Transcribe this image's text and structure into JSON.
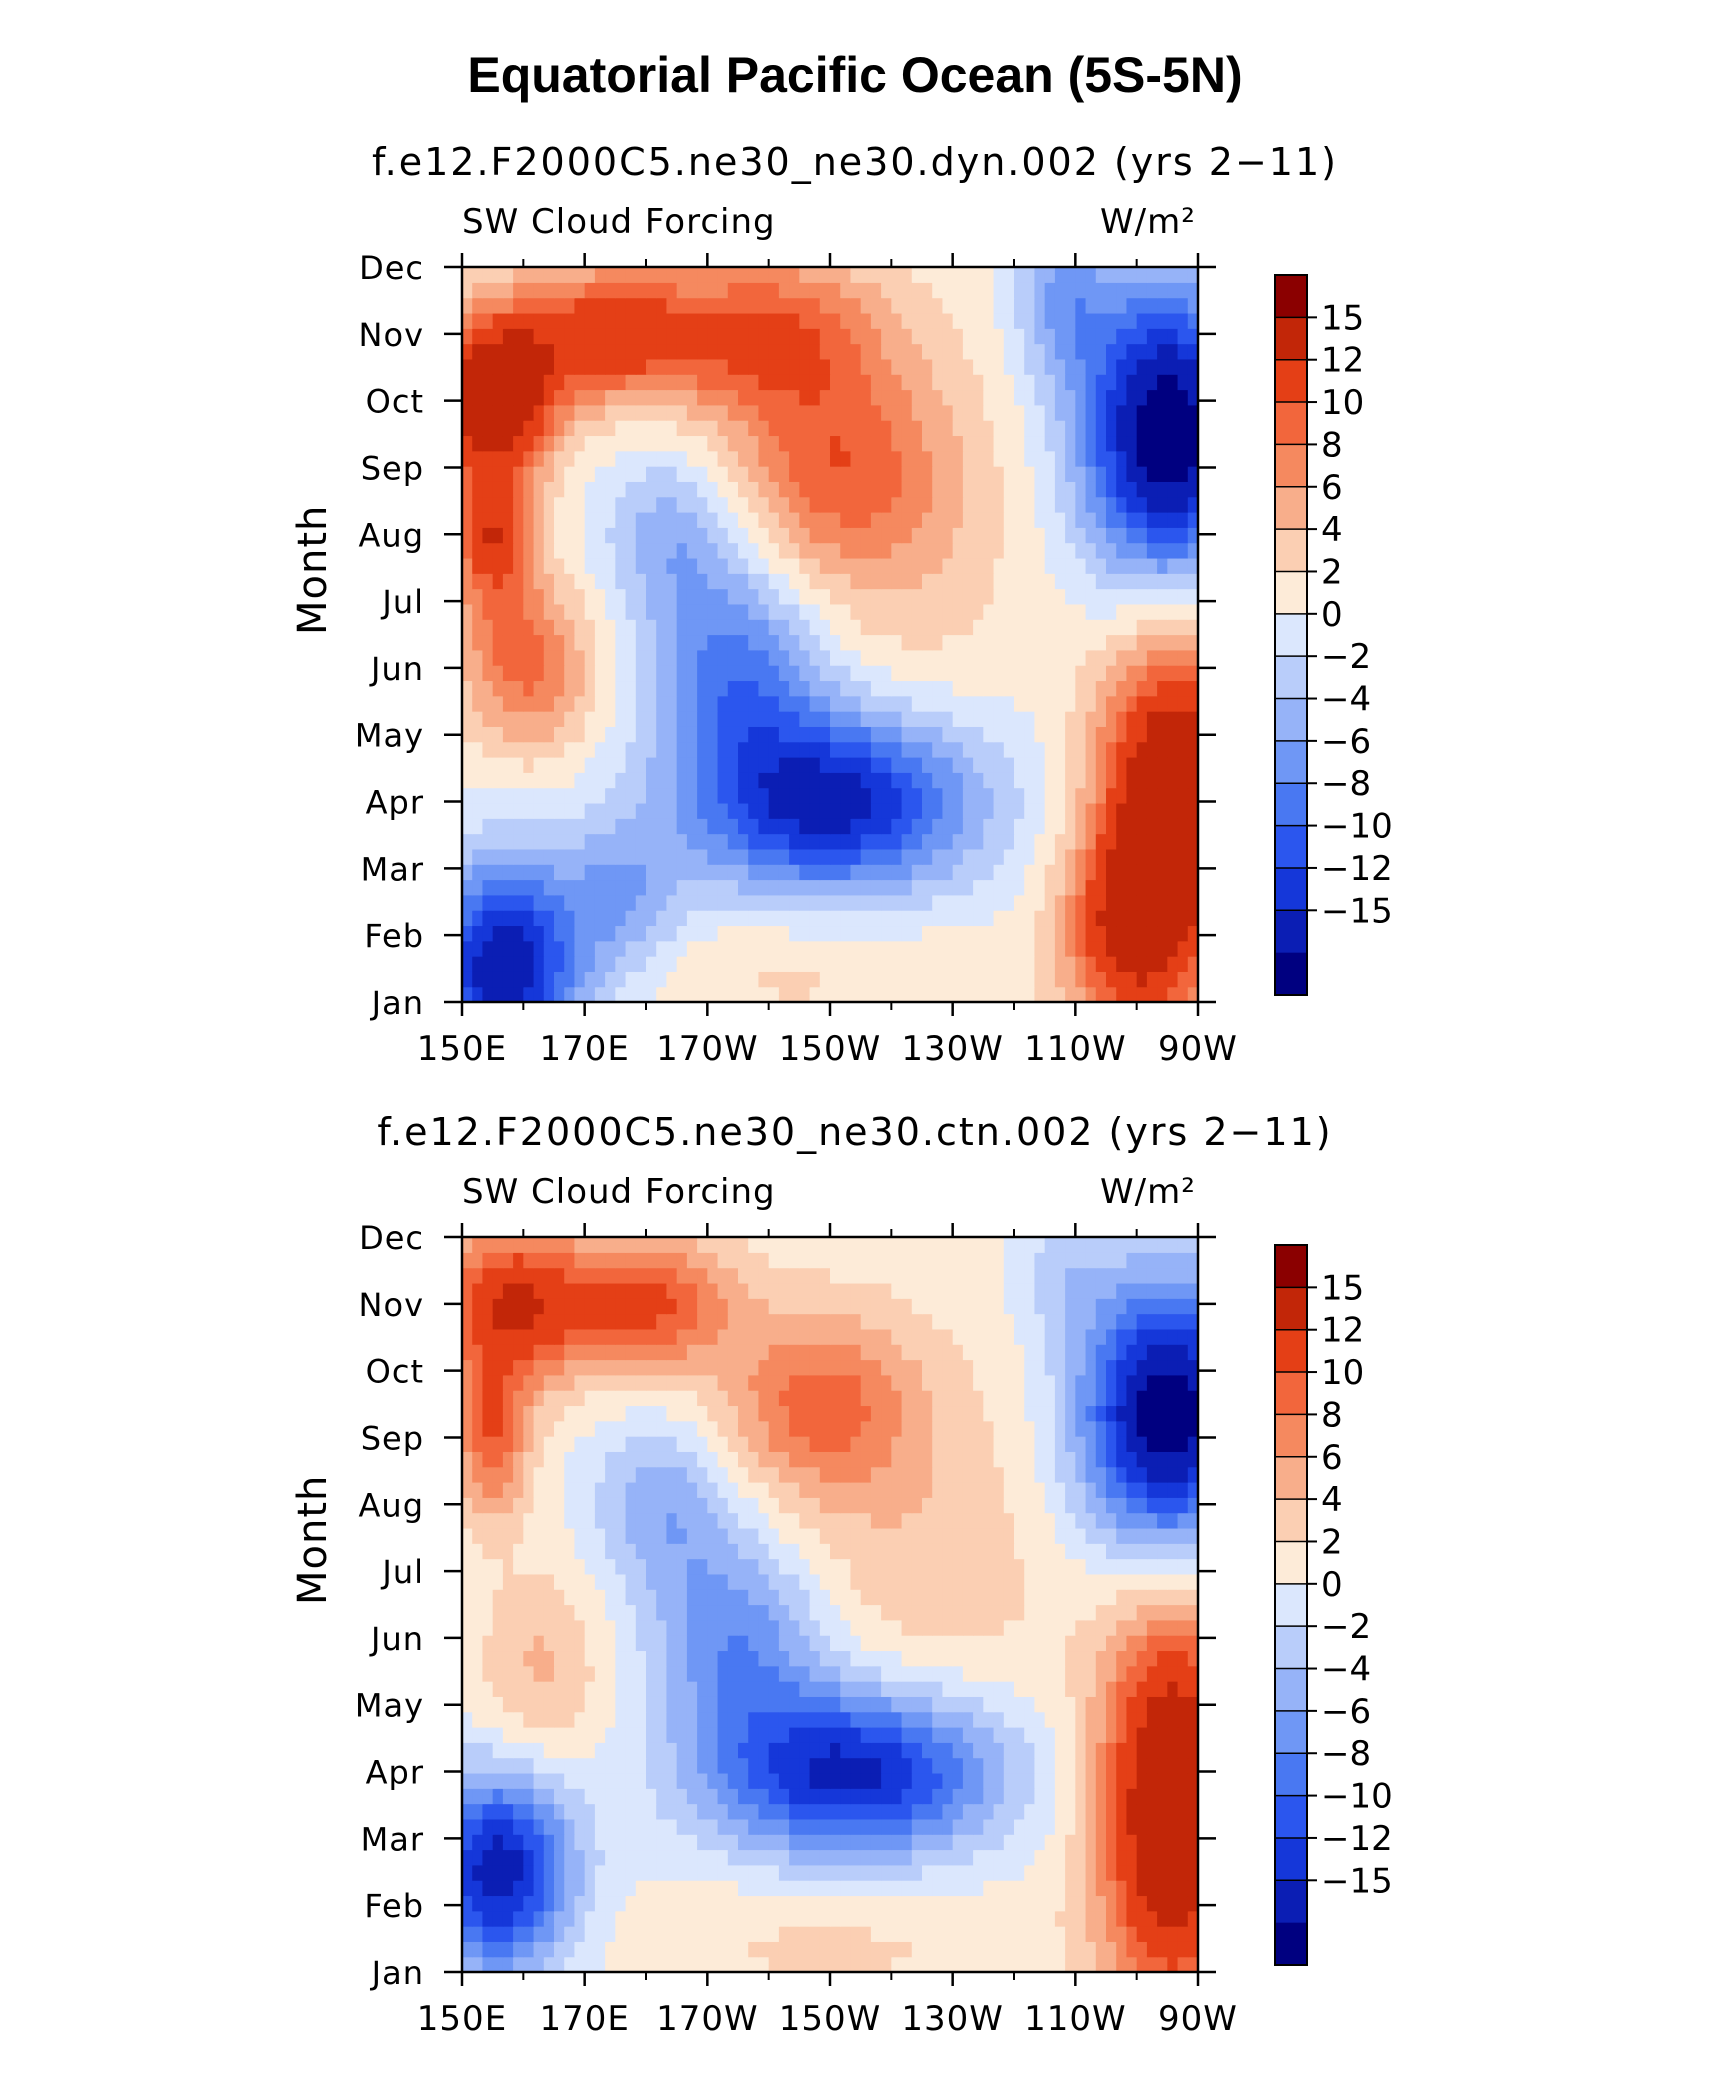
{
  "figure": {
    "title": "Equatorial Pacific Ocean (5S-5N)",
    "colors": [
      "#000080",
      "#0b1eb4",
      "#1537d9",
      "#2b56ee",
      "#4978f2",
      "#6f97f5",
      "#96b3f8",
      "#b9cdfa",
      "#dbe7fd",
      "#fdebd8",
      "#fbcfb3",
      "#f8ae8b",
      "#f5895f",
      "#f2663c",
      "#e43f16",
      "#c22608",
      "#8b0000"
    ]
  },
  "chart_data": [
    {
      "type": "heatmap",
      "title": "f.e12.F2000C5.ne30_ne30.dyn.002 (yrs 2−11)",
      "variable": "SW Cloud Forcing",
      "units": "W/m²",
      "ylabel": "Month",
      "xlabel": "",
      "x_ticks": [
        "150E",
        "170E",
        "170W",
        "150W",
        "130W",
        "110W",
        "90W"
      ],
      "x_range_lon": [
        150,
        270
      ],
      "y_ticks": [
        "Jan",
        "Feb",
        "Mar",
        "Apr",
        "May",
        "Jun",
        "Jul",
        "Aug",
        "Sep",
        "Oct",
        "Nov",
        "Dec"
      ],
      "colorbar_labels": [
        "15",
        "12",
        "10",
        "8",
        "6",
        "4",
        "2",
        "0",
        "−2",
        "−4",
        "−6",
        "−8",
        "−10",
        "−12",
        "−15"
      ],
      "levels": [
        -15,
        -12,
        -10,
        -8,
        -6,
        -4,
        -2,
        0,
        2,
        4,
        6,
        8,
        10,
        12,
        15
      ],
      "value_range": [
        -18,
        18
      ],
      "features": [
        {
          "lon": 155,
          "month": 10,
          "value": 17,
          "spread_lon": 10,
          "spread_month": 1.2
        },
        {
          "lon": 155,
          "month": 8,
          "value": 9,
          "spread_lon": 6,
          "spread_month": 0.8
        },
        {
          "lon": 173,
          "month": 11,
          "value": 11,
          "spread_lon": 16,
          "spread_month": 1.0
        },
        {
          "lon": 200,
          "month": 11,
          "value": 9,
          "spread_lon": 18,
          "spread_month": 1.2
        },
        {
          "lon": 210,
          "month": 9,
          "value": 7,
          "spread_lon": 18,
          "spread_month": 1.5
        },
        {
          "lon": 220,
          "month": 8,
          "value": 3,
          "spread_lon": 20,
          "spread_month": 3.0
        },
        {
          "lon": 162,
          "month": 6,
          "value": 7,
          "spread_lon": 10,
          "spread_month": 1.3
        },
        {
          "lon": 155,
          "month": 7,
          "value": 4,
          "spread_lon": 8,
          "spread_month": 1.5
        },
        {
          "lon": 210,
          "month": 4,
          "value": -16,
          "spread_lon": 24,
          "spread_month": 1.4
        },
        {
          "lon": 195,
          "month": 6,
          "value": -9,
          "spread_lon": 14,
          "spread_month": 1.5
        },
        {
          "lon": 185,
          "month": 8,
          "value": -6,
          "spread_lon": 12,
          "spread_month": 1.3
        },
        {
          "lon": 157,
          "month": 1.5,
          "value": -17,
          "spread_lon": 12,
          "spread_month": 1.6
        },
        {
          "lon": 176,
          "month": 2.5,
          "value": -6,
          "spread_lon": 10,
          "spread_month": 1.2
        },
        {
          "lon": 265,
          "month": 9.5,
          "value": -20,
          "spread_lon": 14,
          "spread_month": 2.2
        },
        {
          "lon": 248,
          "month": 11.5,
          "value": -6,
          "spread_lon": 8,
          "spread_month": 1.2
        },
        {
          "lon": 266,
          "month": 4,
          "value": 18,
          "spread_lon": 12,
          "spread_month": 2.5
        },
        {
          "lon": 258,
          "month": 2,
          "value": 10,
          "spread_lon": 10,
          "spread_month": 1.5
        },
        {
          "lon": 205,
          "month": 1.5,
          "value": 2,
          "spread_lon": 30,
          "spread_month": 1.0
        }
      ]
    },
    {
      "type": "heatmap",
      "title": "f.e12.F2000C5.ne30_ne30.ctn.002 (yrs 2−11)",
      "variable": "SW Cloud Forcing",
      "units": "W/m²",
      "ylabel": "Month",
      "xlabel": "",
      "x_ticks": [
        "150E",
        "170E",
        "170W",
        "150W",
        "130W",
        "110W",
        "90W"
      ],
      "x_range_lon": [
        150,
        270
      ],
      "y_ticks": [
        "Jan",
        "Feb",
        "Mar",
        "Apr",
        "May",
        "Jun",
        "Jul",
        "Aug",
        "Sep",
        "Oct",
        "Nov",
        "Dec"
      ],
      "colorbar_labels": [
        "15",
        "12",
        "10",
        "8",
        "6",
        "4",
        "2",
        "0",
        "−2",
        "−4",
        "−6",
        "−8",
        "−10",
        "−12",
        "−15"
      ],
      "levels": [
        -15,
        -12,
        -10,
        -8,
        -6,
        -4,
        -2,
        0,
        2,
        4,
        6,
        8,
        10,
        12,
        15
      ],
      "value_range": [
        -18,
        18
      ],
      "features": [
        {
          "lon": 158,
          "month": 11,
          "value": 12,
          "spread_lon": 12,
          "spread_month": 1.2
        },
        {
          "lon": 155,
          "month": 9,
          "value": 9,
          "spread_lon": 6,
          "spread_month": 1.2
        },
        {
          "lon": 180,
          "month": 11,
          "value": 10,
          "spread_lon": 14,
          "spread_month": 1.0
        },
        {
          "lon": 208,
          "month": 9.5,
          "value": 8,
          "spread_lon": 16,
          "spread_month": 1.4
        },
        {
          "lon": 225,
          "month": 7,
          "value": 3,
          "spread_lon": 22,
          "spread_month": 3.0
        },
        {
          "lon": 163,
          "month": 5.5,
          "value": 4,
          "spread_lon": 10,
          "spread_month": 1.5
        },
        {
          "lon": 214,
          "month": 4,
          "value": -16,
          "spread_lon": 24,
          "spread_month": 1.3
        },
        {
          "lon": 195,
          "month": 6,
          "value": -8,
          "spread_lon": 14,
          "spread_month": 1.5
        },
        {
          "lon": 183,
          "month": 8,
          "value": -6,
          "spread_lon": 12,
          "spread_month": 1.3
        },
        {
          "lon": 156,
          "month": 2.5,
          "value": -16,
          "spread_lon": 12,
          "spread_month": 1.5
        },
        {
          "lon": 265,
          "month": 9.3,
          "value": -20,
          "spread_lon": 14,
          "spread_month": 2.0
        },
        {
          "lon": 248,
          "month": 11.5,
          "value": -3,
          "spread_lon": 8,
          "spread_month": 1.0
        },
        {
          "lon": 266,
          "month": 3.5,
          "value": 18,
          "spread_lon": 12,
          "spread_month": 3.0
        },
        {
          "lon": 210,
          "month": 1.5,
          "value": 2,
          "spread_lon": 30,
          "spread_month": 1.0
        }
      ]
    }
  ]
}
